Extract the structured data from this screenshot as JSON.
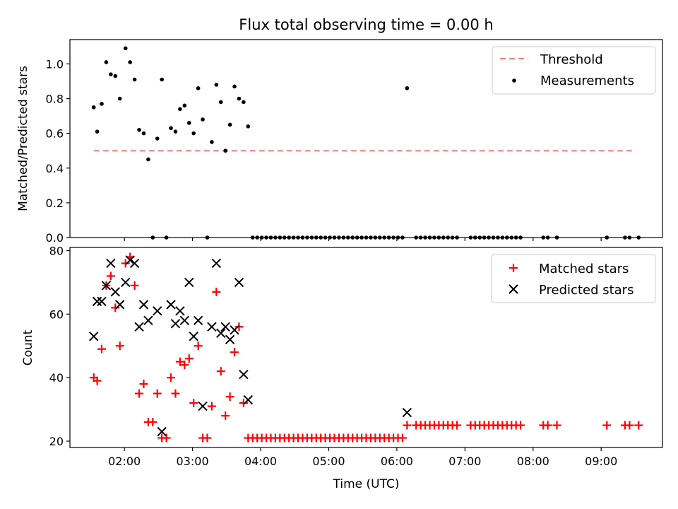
{
  "title": "Flux total observing time = 0.00 h",
  "colors": {
    "threshold": "#ff7f7f",
    "measurement": "#000000",
    "matched": "#ff0000",
    "predicted": "#000000"
  },
  "chart_data": [
    {
      "type": "scatter",
      "ylabel": "Matched/Predicted stars",
      "xlim": [
        "01:12",
        "09:54"
      ],
      "ylim": [
        0,
        1.14
      ],
      "yticks": [
        "0.0",
        "0.2",
        "0.4",
        "0.6",
        "0.8",
        "1.0"
      ],
      "legend_position": "top-right",
      "threshold": {
        "name": "Threshold",
        "value": 0.5,
        "x": [
          "01:33",
          "09:27"
        ]
      },
      "series": [
        {
          "name": "Measurements",
          "points": [
            [
              "01:33",
              0.75
            ],
            [
              "01:36",
              0.61
            ],
            [
              "01:40",
              0.77
            ],
            [
              "01:44",
              1.01
            ],
            [
              "01:48",
              0.94
            ],
            [
              "01:52",
              0.93
            ],
            [
              "01:56",
              0.8
            ],
            [
              "02:01",
              1.09
            ],
            [
              "02:05",
              1.01
            ],
            [
              "02:09",
              0.91
            ],
            [
              "02:13",
              0.62
            ],
            [
              "02:17",
              0.6
            ],
            [
              "02:21",
              0.45
            ],
            [
              "02:25",
              0.0
            ],
            [
              "02:29",
              0.57
            ],
            [
              "02:33",
              0.91
            ],
            [
              "02:37",
              0.0
            ],
            [
              "02:41",
              0.63
            ],
            [
              "02:45",
              0.61
            ],
            [
              "02:49",
              0.74
            ],
            [
              "02:53",
              0.76
            ],
            [
              "02:57",
              0.66
            ],
            [
              "03:01",
              0.6
            ],
            [
              "03:05",
              0.86
            ],
            [
              "03:09",
              0.68
            ],
            [
              "03:13",
              0.0
            ],
            [
              "03:17",
              0.55
            ],
            [
              "03:21",
              0.88
            ],
            [
              "03:25",
              0.78
            ],
            [
              "03:29",
              0.5
            ],
            [
              "03:33",
              0.65
            ],
            [
              "03:37",
              0.87
            ],
            [
              "03:41",
              0.8
            ],
            [
              "03:45",
              0.78
            ],
            [
              "03:49",
              0.64
            ],
            [
              "03:53",
              0.0
            ],
            [
              "03:57",
              0.0
            ],
            [
              "04:01",
              0.0
            ],
            [
              "04:05",
              0.0
            ],
            [
              "04:09",
              0.0
            ],
            [
              "04:13",
              0.0
            ],
            [
              "04:17",
              0.0
            ],
            [
              "04:21",
              0.0
            ],
            [
              "04:25",
              0.0
            ],
            [
              "04:29",
              0.0
            ],
            [
              "04:33",
              0.0
            ],
            [
              "04:37",
              0.0
            ],
            [
              "04:41",
              0.0
            ],
            [
              "04:45",
              0.0
            ],
            [
              "04:49",
              0.0
            ],
            [
              "04:53",
              0.0
            ],
            [
              "04:57",
              0.0
            ],
            [
              "05:01",
              0.0
            ],
            [
              "05:05",
              0.0
            ],
            [
              "05:09",
              0.0
            ],
            [
              "05:13",
              0.0
            ],
            [
              "05:17",
              0.0
            ],
            [
              "05:21",
              0.0
            ],
            [
              "05:25",
              0.0
            ],
            [
              "05:29",
              0.0
            ],
            [
              "05:33",
              0.0
            ],
            [
              "05:37",
              0.0
            ],
            [
              "05:41",
              0.0
            ],
            [
              "05:45",
              0.0
            ],
            [
              "05:49",
              0.0
            ],
            [
              "05:53",
              0.0
            ],
            [
              "05:57",
              0.0
            ],
            [
              "06:01",
              0.0
            ],
            [
              "06:05",
              0.0
            ],
            [
              "06:09",
              0.86
            ],
            [
              "06:17",
              0.0
            ],
            [
              "06:21",
              0.0
            ],
            [
              "06:25",
              0.0
            ],
            [
              "06:29",
              0.0
            ],
            [
              "06:33",
              0.0
            ],
            [
              "06:37",
              0.0
            ],
            [
              "06:41",
              0.0
            ],
            [
              "06:45",
              0.0
            ],
            [
              "06:49",
              0.0
            ],
            [
              "06:53",
              0.0
            ],
            [
              "07:05",
              0.0
            ],
            [
              "07:09",
              0.0
            ],
            [
              "07:13",
              0.0
            ],
            [
              "07:17",
              0.0
            ],
            [
              "07:21",
              0.0
            ],
            [
              "07:25",
              0.0
            ],
            [
              "07:29",
              0.0
            ],
            [
              "07:33",
              0.0
            ],
            [
              "07:37",
              0.0
            ],
            [
              "07:41",
              0.0
            ],
            [
              "07:45",
              0.0
            ],
            [
              "07:49",
              0.0
            ],
            [
              "08:09",
              0.0
            ],
            [
              "08:13",
              0.0
            ],
            [
              "08:21",
              0.0
            ],
            [
              "09:05",
              0.0
            ],
            [
              "09:21",
              0.0
            ],
            [
              "09:25",
              0.0
            ],
            [
              "09:33",
              0.0
            ]
          ]
        }
      ]
    },
    {
      "type": "scatter",
      "xlabel": "Time (UTC)",
      "ylabel": "Count",
      "xlim": [
        "01:12",
        "09:54"
      ],
      "ylim": [
        18,
        81
      ],
      "xticks": [
        "02:00",
        "03:00",
        "04:00",
        "05:00",
        "06:00",
        "07:00",
        "08:00",
        "09:00"
      ],
      "yticks": [
        "20",
        "40",
        "60",
        "80"
      ],
      "legend_position": "top-right",
      "series": [
        {
          "name": "Matched stars",
          "marker": "plus",
          "points": [
            [
              "01:33",
              40
            ],
            [
              "01:36",
              39
            ],
            [
              "01:40",
              49
            ],
            [
              "01:44",
              69
            ],
            [
              "01:48",
              72
            ],
            [
              "01:52",
              62
            ],
            [
              "01:56",
              50
            ],
            [
              "02:01",
              76
            ],
            [
              "02:05",
              78
            ],
            [
              "02:09",
              69
            ],
            [
              "02:13",
              35
            ],
            [
              "02:17",
              38
            ],
            [
              "02:21",
              26
            ],
            [
              "02:25",
              26
            ],
            [
              "02:29",
              35
            ],
            [
              "02:33",
              21
            ],
            [
              "02:37",
              21
            ],
            [
              "02:41",
              40
            ],
            [
              "02:45",
              35
            ],
            [
              "02:49",
              45
            ],
            [
              "02:53",
              44
            ],
            [
              "02:57",
              46
            ],
            [
              "03:01",
              32
            ],
            [
              "03:05",
              50
            ],
            [
              "03:09",
              21
            ],
            [
              "03:13",
              21
            ],
            [
              "03:17",
              31
            ],
            [
              "03:21",
              67
            ],
            [
              "03:25",
              42
            ],
            [
              "03:29",
              28
            ],
            [
              "03:33",
              34
            ],
            [
              "03:37",
              48
            ],
            [
              "03:41",
              56
            ],
            [
              "03:45",
              32
            ],
            [
              "03:49",
              21
            ],
            [
              "03:53",
              21
            ],
            [
              "03:57",
              21
            ],
            [
              "04:01",
              21
            ],
            [
              "04:05",
              21
            ],
            [
              "04:09",
              21
            ],
            [
              "04:13",
              21
            ],
            [
              "04:17",
              21
            ],
            [
              "04:21",
              21
            ],
            [
              "04:25",
              21
            ],
            [
              "04:29",
              21
            ],
            [
              "04:33",
              21
            ],
            [
              "04:37",
              21
            ],
            [
              "04:41",
              21
            ],
            [
              "04:45",
              21
            ],
            [
              "04:49",
              21
            ],
            [
              "04:53",
              21
            ],
            [
              "04:57",
              21
            ],
            [
              "05:01",
              21
            ],
            [
              "05:05",
              21
            ],
            [
              "05:09",
              21
            ],
            [
              "05:13",
              21
            ],
            [
              "05:17",
              21
            ],
            [
              "05:21",
              21
            ],
            [
              "05:25",
              21
            ],
            [
              "05:29",
              21
            ],
            [
              "05:33",
              21
            ],
            [
              "05:37",
              21
            ],
            [
              "05:41",
              21
            ],
            [
              "05:45",
              21
            ],
            [
              "05:49",
              21
            ],
            [
              "05:53",
              21
            ],
            [
              "05:57",
              21
            ],
            [
              "06:01",
              21
            ],
            [
              "06:05",
              21
            ],
            [
              "06:09",
              25
            ],
            [
              "06:17",
              25
            ],
            [
              "06:21",
              25
            ],
            [
              "06:25",
              25
            ],
            [
              "06:29",
              25
            ],
            [
              "06:33",
              25
            ],
            [
              "06:37",
              25
            ],
            [
              "06:41",
              25
            ],
            [
              "06:45",
              25
            ],
            [
              "06:49",
              25
            ],
            [
              "06:53",
              25
            ],
            [
              "07:05",
              25
            ],
            [
              "07:09",
              25
            ],
            [
              "07:13",
              25
            ],
            [
              "07:17",
              25
            ],
            [
              "07:21",
              25
            ],
            [
              "07:25",
              25
            ],
            [
              "07:29",
              25
            ],
            [
              "07:33",
              25
            ],
            [
              "07:37",
              25
            ],
            [
              "07:41",
              25
            ],
            [
              "07:45",
              25
            ],
            [
              "07:49",
              25
            ],
            [
              "08:09",
              25
            ],
            [
              "08:13",
              25
            ],
            [
              "08:21",
              25
            ],
            [
              "09:05",
              25
            ],
            [
              "09:21",
              25
            ],
            [
              "09:25",
              25
            ],
            [
              "09:33",
              25
            ]
          ]
        },
        {
          "name": "Predicted stars",
          "marker": "x",
          "points": [
            [
              "01:33",
              53
            ],
            [
              "01:36",
              64
            ],
            [
              "01:40",
              64
            ],
            [
              "01:44",
              69
            ],
            [
              "01:48",
              76
            ],
            [
              "01:52",
              67
            ],
            [
              "01:56",
              63
            ],
            [
              "02:01",
              70
            ],
            [
              "02:05",
              77
            ],
            [
              "02:09",
              76
            ],
            [
              "02:13",
              56
            ],
            [
              "02:17",
              63
            ],
            [
              "02:21",
              58
            ],
            [
              "02:29",
              61
            ],
            [
              "02:33",
              23
            ],
            [
              "02:41",
              63
            ],
            [
              "02:45",
              57
            ],
            [
              "02:49",
              61
            ],
            [
              "02:53",
              58
            ],
            [
              "02:57",
              70
            ],
            [
              "03:01",
              53
            ],
            [
              "03:05",
              58
            ],
            [
              "03:09",
              31
            ],
            [
              "03:17",
              56
            ],
            [
              "03:21",
              76
            ],
            [
              "03:25",
              54
            ],
            [
              "03:29",
              56
            ],
            [
              "03:33",
              52
            ],
            [
              "03:37",
              55
            ],
            [
              "03:41",
              70
            ],
            [
              "03:45",
              41
            ],
            [
              "03:49",
              33
            ],
            [
              "06:09",
              29
            ]
          ]
        }
      ]
    }
  ]
}
